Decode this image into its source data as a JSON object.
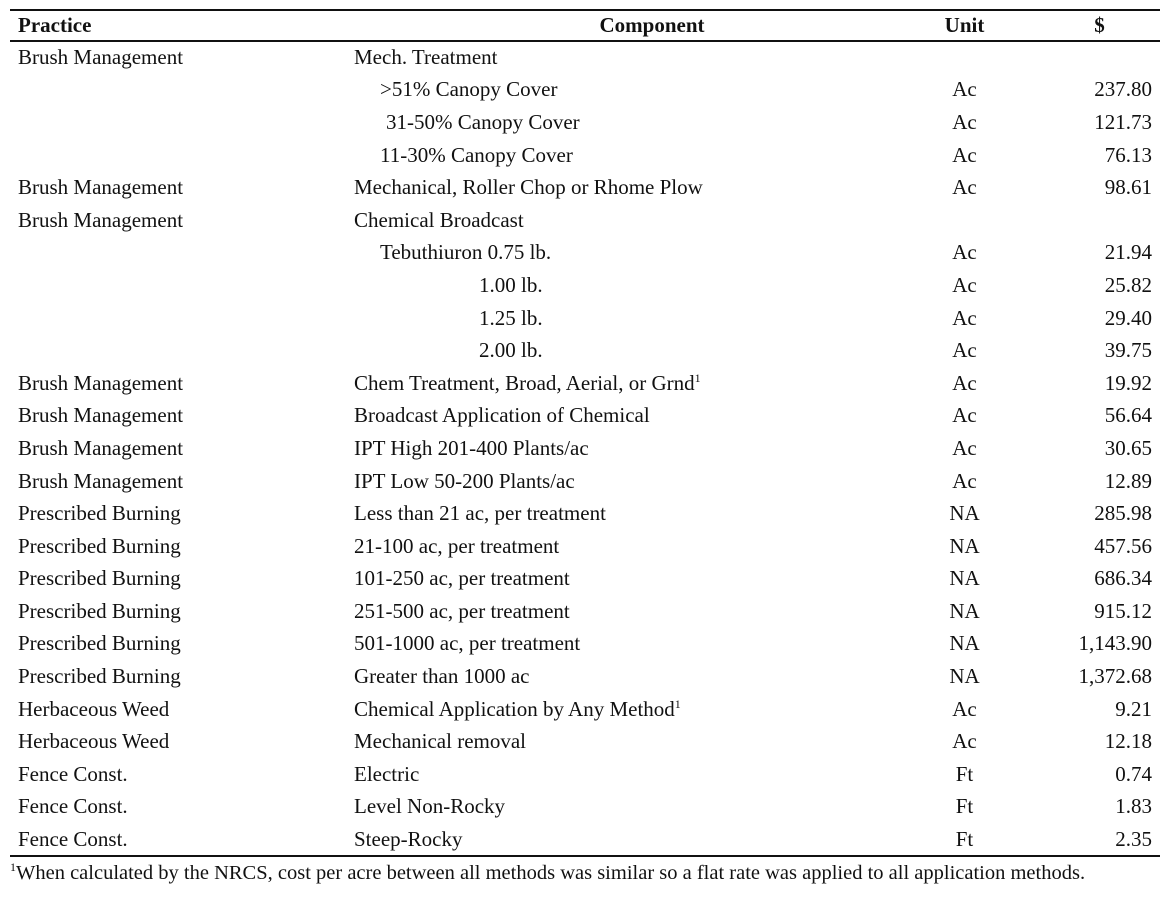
{
  "table": {
    "headers": {
      "practice": "Practice",
      "component": "Component",
      "unit": "Unit",
      "dollar": "$"
    },
    "rows": [
      {
        "practice": "Brush Management",
        "component": "Mech. Treatment",
        "unit": "",
        "dollar": "",
        "indent": 0,
        "fn": ""
      },
      {
        "practice": "",
        "component": ">51% Canopy Cover",
        "unit": "Ac",
        "dollar": "237.80",
        "indent": 1,
        "fn": ""
      },
      {
        "practice": "",
        "component": "31-50% Canopy Cover",
        "unit": "Ac",
        "dollar": "121.73",
        "indent": 2,
        "fn": ""
      },
      {
        "practice": "",
        "component": "11-30% Canopy Cover",
        "unit": "Ac",
        "dollar": "76.13",
        "indent": 1,
        "fn": ""
      },
      {
        "practice": "Brush Management",
        "component": "Mechanical, Roller Chop or Rhome Plow",
        "unit": "Ac",
        "dollar": "98.61",
        "indent": 0,
        "fn": ""
      },
      {
        "practice": "Brush Management",
        "component": "Chemical Broadcast",
        "unit": "",
        "dollar": "",
        "indent": 0,
        "fn": ""
      },
      {
        "practice": "",
        "component": "Tebuthiuron 0.75 lb.",
        "unit": "Ac",
        "dollar": "21.94",
        "indent": 1,
        "fn": ""
      },
      {
        "practice": "",
        "component": "1.00 lb.",
        "unit": "Ac",
        "dollar": "25.82",
        "indent": 3,
        "fn": ""
      },
      {
        "practice": "",
        "component": "1.25 lb.",
        "unit": "Ac",
        "dollar": "29.40",
        "indent": 3,
        "fn": ""
      },
      {
        "practice": "",
        "component": "2.00 lb.",
        "unit": "Ac",
        "dollar": "39.75",
        "indent": 3,
        "fn": ""
      },
      {
        "practice": "Brush Management",
        "component": "Chem Treatment, Broad, Aerial, or Grnd",
        "unit": "Ac",
        "dollar": "19.92",
        "indent": 0,
        "fn": "1"
      },
      {
        "practice": "Brush Management",
        "component": "Broadcast Application of Chemical",
        "unit": "Ac",
        "dollar": "56.64",
        "indent": 0,
        "fn": ""
      },
      {
        "practice": "Brush Management",
        "component": "IPT High 201-400 Plants/ac",
        "unit": "Ac",
        "dollar": "30.65",
        "indent": 0,
        "fn": ""
      },
      {
        "practice": "Brush Management",
        "component": "IPT Low 50-200 Plants/ac",
        "unit": "Ac",
        "dollar": "12.89",
        "indent": 0,
        "fn": ""
      },
      {
        "practice": "Prescribed Burning",
        "component": "Less than 21 ac, per treatment",
        "unit": "NA",
        "dollar": "285.98",
        "indent": 0,
        "fn": ""
      },
      {
        "practice": "Prescribed Burning",
        "component": "21-100 ac, per treatment",
        "unit": "NA",
        "dollar": "457.56",
        "indent": 0,
        "fn": ""
      },
      {
        "practice": "Prescribed Burning",
        "component": "101-250 ac, per treatment",
        "unit": "NA",
        "dollar": "686.34",
        "indent": 0,
        "fn": ""
      },
      {
        "practice": "Prescribed Burning",
        "component": "251-500 ac, per treatment",
        "unit": "NA",
        "dollar": "915.12",
        "indent": 0,
        "fn": ""
      },
      {
        "practice": "Prescribed Burning",
        "component": "501-1000 ac, per treatment",
        "unit": "NA",
        "dollar": "1,143.90",
        "indent": 0,
        "fn": ""
      },
      {
        "practice": "Prescribed Burning",
        "component": "Greater than 1000 ac",
        "unit": "NA",
        "dollar": "1,372.68",
        "indent": 0,
        "fn": ""
      },
      {
        "practice": "Herbaceous Weed",
        "component": "Chemical Application by Any Method",
        "unit": "Ac",
        "dollar": "9.21",
        "indent": 0,
        "fn": "1"
      },
      {
        "practice": "Herbaceous Weed",
        "component": "Mechanical removal",
        "unit": "Ac",
        "dollar": "12.18",
        "indent": 0,
        "fn": ""
      },
      {
        "practice": "Fence Const.",
        "component": "Electric",
        "unit": "Ft",
        "dollar": "0.74",
        "indent": 0,
        "fn": ""
      },
      {
        "practice": "Fence Const.",
        "component": "Level Non-Rocky",
        "unit": "Ft",
        "dollar": "1.83",
        "indent": 0,
        "fn": ""
      },
      {
        "practice": "Fence Const.",
        "component": "Steep-Rocky",
        "unit": "Ft",
        "dollar": "2.35",
        "indent": 0,
        "fn": ""
      }
    ]
  },
  "footnote": {
    "marker": "1",
    "text": "When calculated by the NRCS, cost per acre between all methods was similar so a flat rate was applied to all application methods."
  }
}
